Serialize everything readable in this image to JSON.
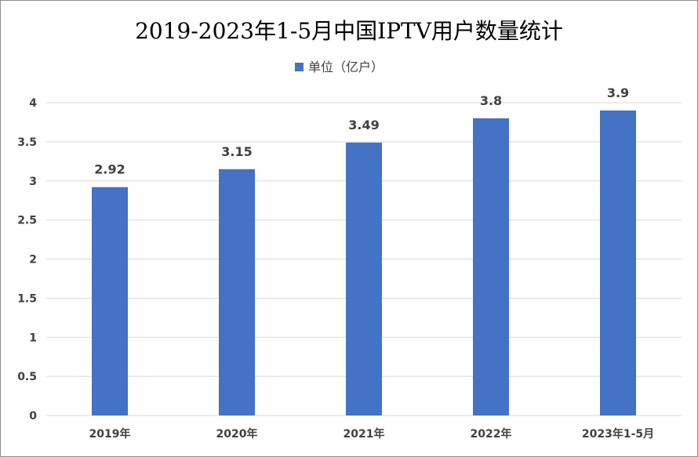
{
  "chart_data": {
    "type": "bar",
    "title": "2019-2023年1-5月中国IPTV用户数量统计",
    "categories": [
      "2019年",
      "2020年",
      "2021年",
      "2022年",
      "2023年1-5月"
    ],
    "series": [
      {
        "name": "单位（亿户）",
        "values": [
          2.92,
          3.15,
          3.49,
          3.8,
          3.9
        ],
        "color": "#4472c4"
      }
    ],
    "data_labels": [
      "2.92",
      "3.15",
      "3.49",
      "3.8",
      "3.9"
    ],
    "y_ticks": [
      "0",
      "0.5",
      "1",
      "1.5",
      "2",
      "2.5",
      "3",
      "3.5",
      "4"
    ],
    "ylim": [
      0,
      4
    ],
    "grid": true,
    "legend_position": "top"
  }
}
